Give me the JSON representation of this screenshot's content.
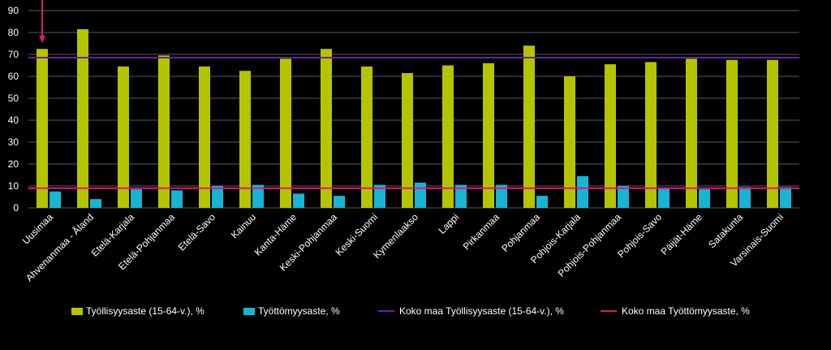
{
  "colors": {
    "background": "#000000",
    "employment": "#b5c400",
    "unemployment": "#19b3d4",
    "national_employment": "#6a1fa0",
    "national_unemployment": "#e0157a",
    "grid": "#5a5a5a",
    "arrow": "#e0157a"
  },
  "legend": {
    "employment": "Työllisyysaste (15-64-v.), %",
    "unemployment": "Työttömyysaste, %",
    "national_employment": "Koko maa Työllisyysaste (15-64-v.), %",
    "national_unemployment": "Koko maa Työttömyysaste, %"
  },
  "chart_data": {
    "type": "bar",
    "title": "",
    "xlabel": "",
    "ylabel": "",
    "ylim": [
      0,
      90
    ],
    "yticks": [
      0,
      10,
      20,
      30,
      40,
      50,
      60,
      70,
      80,
      90
    ],
    "grid": true,
    "legend_position": "bottom",
    "categories": [
      "Uusimaa",
      "Ahvenanmaa - Åland",
      "Etelä-Karjala",
      "Etelä-Pohjanmaa",
      "Etelä-Savo",
      "Kainuu",
      "Kanta-Häme",
      "Keski-Pohjanmaa",
      "Keski-Suomi",
      "Kymenlaakso",
      "Lappi",
      "Pirkanmaa",
      "Pohjanmaa",
      "Pohjois-Karjala",
      "Pohjois-Pohjanmaa",
      "Pohjois-Savo",
      "Päijät-Häme",
      "Satakunta",
      "Varsinais-Suomi"
    ],
    "series": [
      {
        "name": "Työllisyysaste (15-64-v.), %",
        "type": "bar",
        "values": [
          72.5,
          81.5,
          64.5,
          69.5,
          64.5,
          62.5,
          68.0,
          72.5,
          64.5,
          61.5,
          65.0,
          66.0,
          74.0,
          60.0,
          65.5,
          66.5,
          68.0,
          67.5,
          67.5
        ]
      },
      {
        "name": "Työttömyysaste, %",
        "type": "bar",
        "values": [
          7.5,
          4.0,
          8.5,
          8.0,
          10.0,
          10.5,
          6.5,
          5.5,
          10.5,
          11.5,
          10.5,
          10.5,
          5.5,
          14.5,
          10.0,
          9.0,
          8.5,
          9.5,
          9.5
        ]
      },
      {
        "name": "Koko maa Työllisyysaste (15-64-v.), %",
        "type": "line",
        "value": 68.5
      },
      {
        "name": "Koko maa Työttömyysaste, %",
        "type": "line",
        "value": 9.0
      }
    ],
    "annotations": [
      {
        "type": "arrow",
        "target_category": "Uusimaa"
      }
    ]
  }
}
